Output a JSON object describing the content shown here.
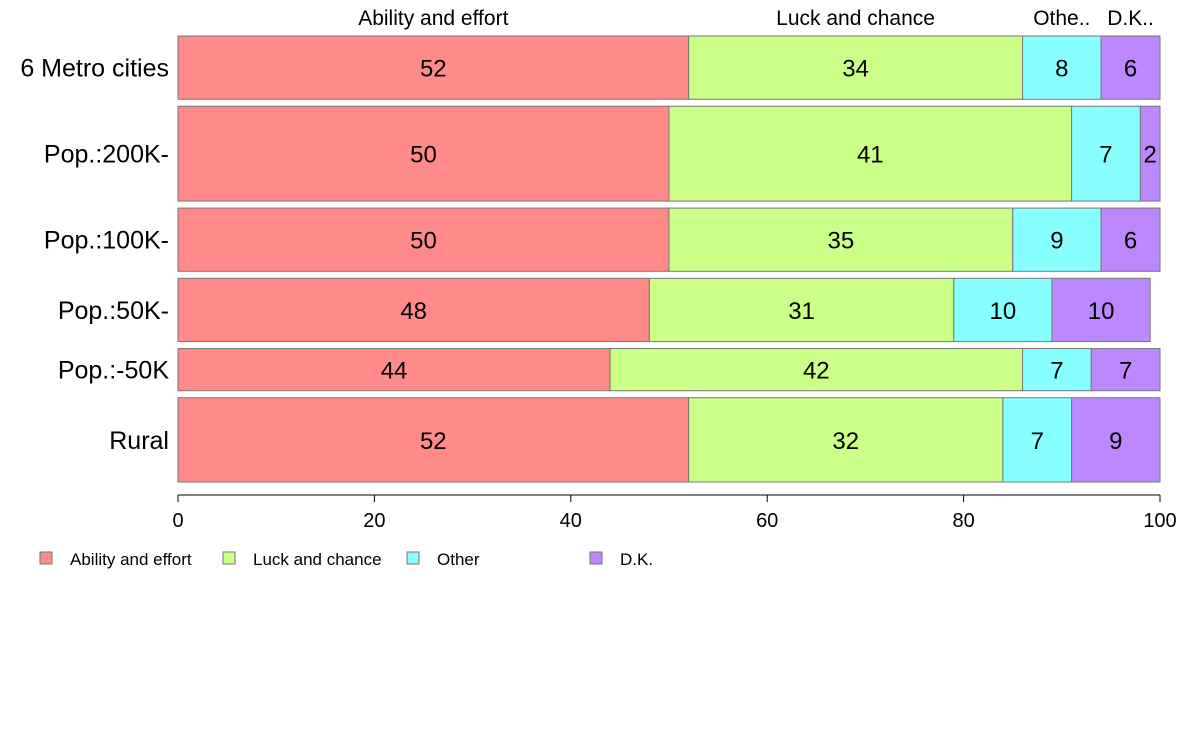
{
  "chart_data": {
    "type": "bar",
    "orientation": "horizontal",
    "stacked": true,
    "categories": [
      "6 Metro cities",
      "Pop.:200K-",
      "Pop.:100K-",
      "Pop.:50K-",
      "Pop.:-50K",
      "Rural"
    ],
    "series": [
      {
        "name": "Ability and effort",
        "top_label": "Ability and effort",
        "color": "#FF8A8A",
        "values": [
          52,
          50,
          50,
          48,
          44,
          52
        ]
      },
      {
        "name": "Luck and chance",
        "top_label": "Luck and chance",
        "color": "#CCFF88",
        "values": [
          34,
          41,
          35,
          31,
          42,
          32
        ]
      },
      {
        "name": "Other",
        "top_label": "Othe..",
        "color": "#88FFFF",
        "values": [
          8,
          7,
          9,
          10,
          7,
          7
        ]
      },
      {
        "name": "D.K.",
        "top_label": "D.K..",
        "color": "#BB88FF",
        "values": [
          6,
          2,
          6,
          10,
          7,
          9
        ]
      }
    ],
    "row_weights": [
      1,
      1.5,
      1,
      1,
      0.667,
      1.333
    ],
    "xlim": [
      0,
      100
    ],
    "xticks": [
      0,
      20,
      40,
      60,
      80,
      100
    ],
    "grid": false,
    "legend_position": "bottom-left"
  }
}
